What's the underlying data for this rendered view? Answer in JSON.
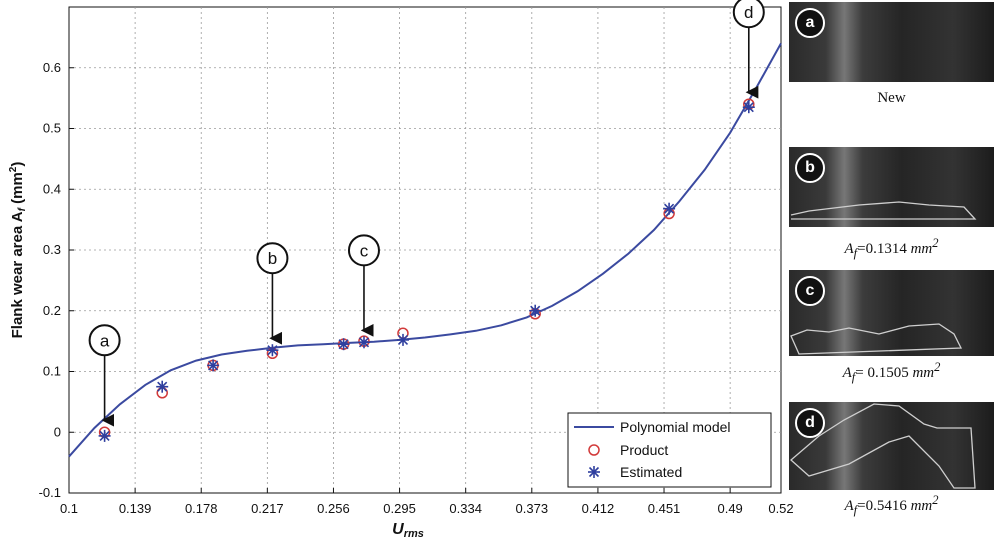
{
  "chart_data": {
    "type": "scatter",
    "xlabel_main": "U",
    "xlabel_sub": "rms",
    "ylabel": "Flank wear area A",
    "ylabel_sub": "f",
    "ylabel_unit": " (mm",
    "ylabel_sup": "2",
    "ylabel_close": ")",
    "xlim": [
      0.1,
      0.52
    ],
    "ylim": [
      -0.1,
      0.7
    ],
    "x_ticks": [
      "0.1",
      "0.139",
      "0.178",
      "0.217",
      "0.256",
      "0.295",
      "0.334",
      "0.373",
      "0.412",
      "0.451",
      "0.49",
      "0.52"
    ],
    "y_ticks": [
      "-0.1",
      "0",
      "0.1",
      "0.2",
      "0.3",
      "0.4",
      "0.5",
      "0.6"
    ],
    "x_tick_values": [
      0.1,
      0.139,
      0.178,
      0.217,
      0.256,
      0.295,
      0.334,
      0.373,
      0.412,
      0.451,
      0.49,
      0.52
    ],
    "y_tick_values": [
      -0.1,
      0,
      0.1,
      0.2,
      0.3,
      0.4,
      0.5,
      0.6
    ],
    "grid": true,
    "legend_position": "bottom-right",
    "series": [
      {
        "name": "Polynomial model",
        "kind": "line",
        "color": "#3b4aa0",
        "x": [
          0.1,
          0.115,
          0.13,
          0.145,
          0.16,
          0.175,
          0.19,
          0.205,
          0.22,
          0.235,
          0.25,
          0.265,
          0.28,
          0.295,
          0.31,
          0.325,
          0.34,
          0.355,
          0.37,
          0.385,
          0.4,
          0.415,
          0.43,
          0.445,
          0.46,
          0.475,
          0.49,
          0.505,
          0.52
        ],
        "y": [
          -0.04,
          0.007,
          0.046,
          0.078,
          0.102,
          0.118,
          0.128,
          0.134,
          0.139,
          0.143,
          0.145,
          0.147,
          0.149,
          0.152,
          0.156,
          0.161,
          0.167,
          0.176,
          0.189,
          0.208,
          0.232,
          0.261,
          0.294,
          0.333,
          0.38,
          0.432,
          0.493,
          0.565,
          0.64
        ]
      },
      {
        "name": "Product",
        "kind": "marker-circle",
        "color": "#d23a3a",
        "x": [
          0.121,
          0.155,
          0.185,
          0.22,
          0.262,
          0.274,
          0.297,
          0.375,
          0.454,
          0.501
        ],
        "y": [
          0.0,
          0.065,
          0.11,
          0.13,
          0.145,
          0.15,
          0.163,
          0.195,
          0.36,
          0.54
        ]
      },
      {
        "name": "Estimated",
        "kind": "marker-star",
        "color": "#2f3f9e",
        "x": [
          0.121,
          0.155,
          0.185,
          0.22,
          0.262,
          0.274,
          0.297,
          0.375,
          0.454,
          0.501
        ],
        "y": [
          -0.006,
          0.075,
          0.11,
          0.135,
          0.145,
          0.148,
          0.152,
          0.2,
          0.368,
          0.535
        ]
      }
    ],
    "annotations": [
      {
        "label": "a",
        "x": 0.121,
        "y": 0.0
      },
      {
        "label": "b",
        "x": 0.22,
        "y": 0.135
      },
      {
        "label": "c",
        "x": 0.274,
        "y": 0.148
      },
      {
        "label": "d",
        "x": 0.501,
        "y": 0.54
      }
    ]
  },
  "photos": [
    {
      "badge": "a",
      "caption_plain": "New"
    },
    {
      "badge": "b",
      "caption_prefix": "A",
      "caption_sub": "f",
      "caption_value": "=0.1314",
      "caption_unit": "mm",
      "caption_sup": "2"
    },
    {
      "badge": "c",
      "caption_prefix": "A",
      "caption_sub": "f",
      "caption_value": "= 0.1505",
      "caption_unit": "mm",
      "caption_sup": "2"
    },
    {
      "badge": "d",
      "caption_prefix": "A",
      "caption_sub": "f",
      "caption_value": "=0.5416",
      "caption_unit": "mm",
      "caption_sup": "2"
    }
  ]
}
